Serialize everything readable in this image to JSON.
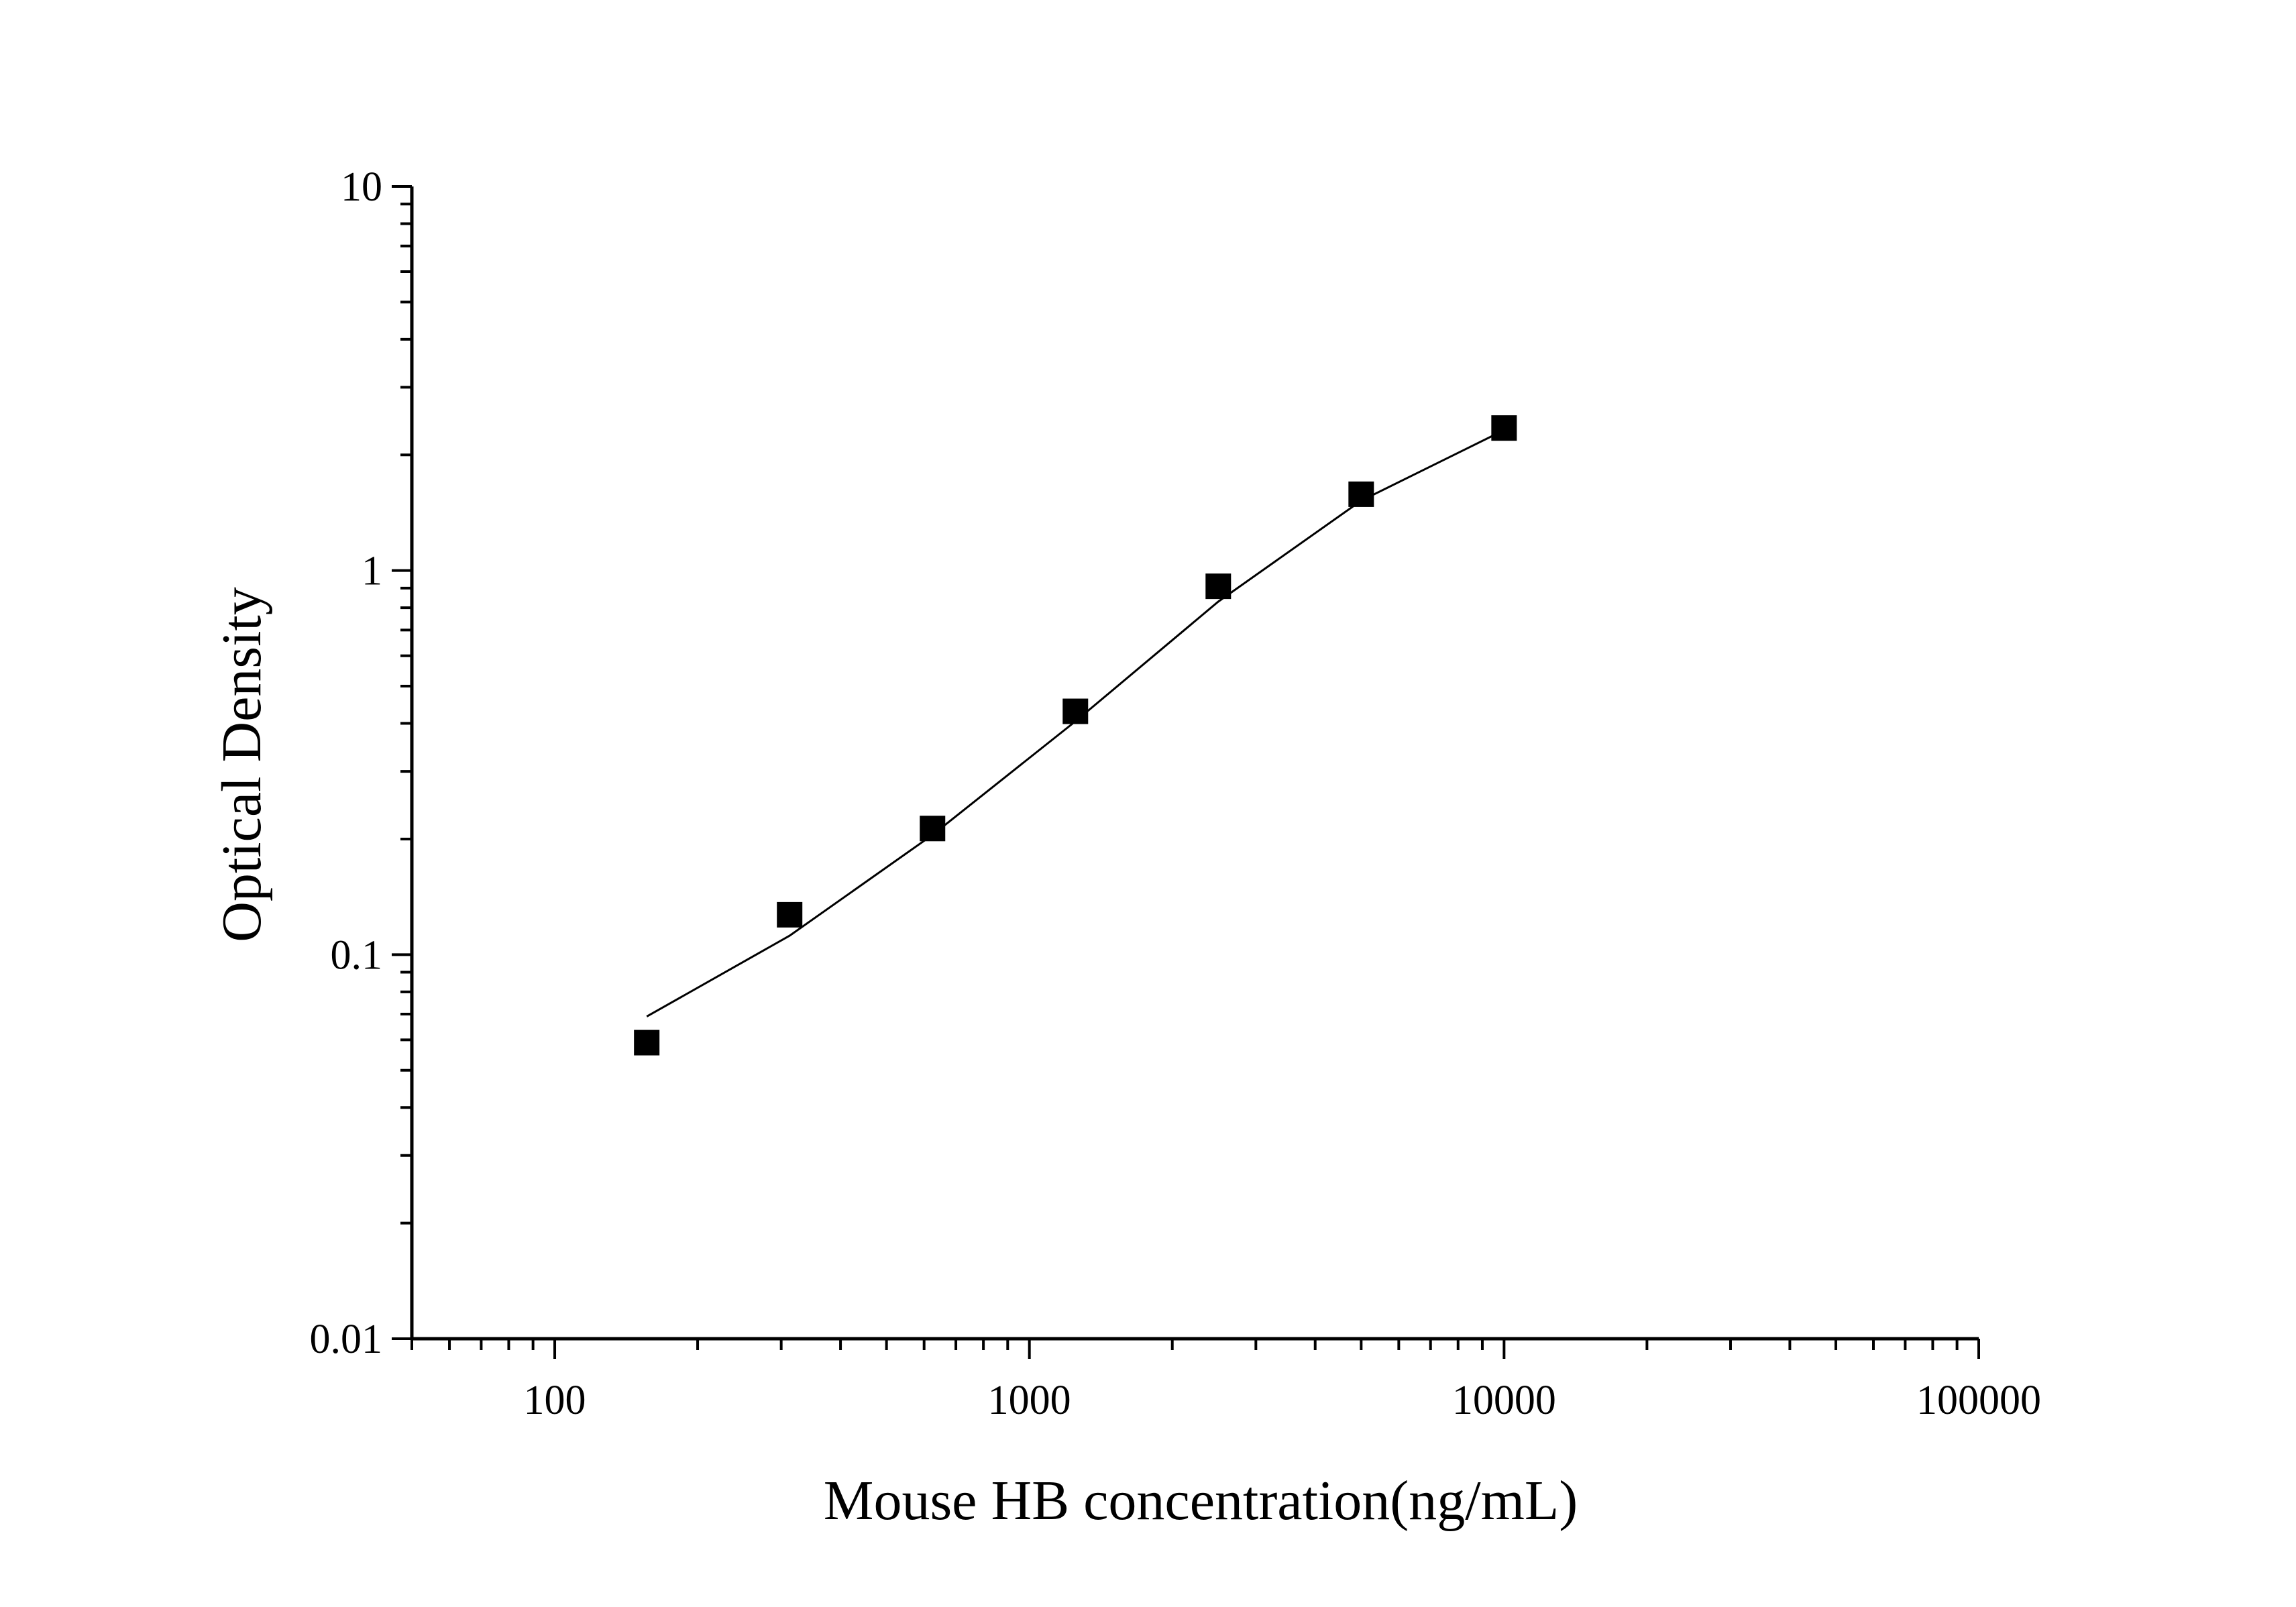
{
  "chart_data": {
    "type": "scatter",
    "title": "",
    "xlabel": "Mouse HB concentration(ng/mL)",
    "ylabel": "Optical Density",
    "x_scale": "log",
    "y_scale": "log",
    "xlim": [
      50,
      100000
    ],
    "ylim": [
      0.01,
      10
    ],
    "x_ticks": [
      100,
      1000,
      10000,
      100000
    ],
    "x_tick_labels": [
      "100",
      "1000",
      "10000",
      "100000"
    ],
    "y_ticks": [
      0.01,
      0.1,
      1,
      10
    ],
    "y_tick_labels": [
      "0.01",
      "0.1",
      "1",
      "10"
    ],
    "grid": false,
    "legend": "none",
    "marker_color": "#000000",
    "line_color": "#000000",
    "series": [
      {
        "x": [
          156.25,
          312.5,
          625,
          1250,
          2500,
          5000,
          10000
        ],
        "y": [
          0.059,
          0.127,
          0.213,
          0.43,
          0.91,
          1.58,
          2.35
        ],
        "fit": [
          0.069,
          0.112,
          0.205,
          0.405,
          0.83,
          1.52,
          2.32
        ]
      }
    ]
  }
}
